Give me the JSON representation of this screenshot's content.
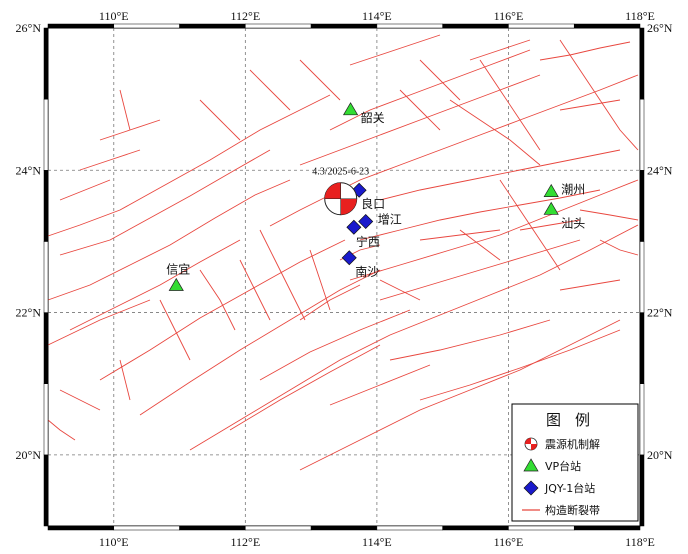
{
  "map": {
    "lon_range": [
      109,
      118
    ],
    "lat_range": [
      19,
      26
    ],
    "lon_ticks": [
      {
        "value": 110,
        "label": "110°E"
      },
      {
        "value": 112,
        "label": "112°E"
      },
      {
        "value": 114,
        "label": "114°E"
      },
      {
        "value": 116,
        "label": "116°E"
      },
      {
        "value": 118,
        "label": "118°E"
      }
    ],
    "lat_ticks": [
      {
        "value": 26,
        "label": "26°N"
      },
      {
        "value": 24,
        "label": "24°N"
      },
      {
        "value": 22,
        "label": "22°N"
      },
      {
        "value": 20,
        "label": "20°N"
      }
    ],
    "grid": "dashed",
    "fault_color": "#e8473f",
    "vp_color": "#33dd33",
    "jqy_color": "#1a1acc",
    "beachball_color": "#e8201f"
  },
  "event": {
    "label": "4.3/2025-6-23",
    "lon": 113.45,
    "lat": 23.6
  },
  "vp_stations": [
    {
      "name": "韶关",
      "lon": 113.6,
      "lat": 24.85
    },
    {
      "name": "潮州",
      "lon": 116.65,
      "lat": 23.7
    },
    {
      "name": "汕头",
      "lon": 116.65,
      "lat": 23.45
    },
    {
      "name": "信宜",
      "lon": 110.95,
      "lat": 22.38
    }
  ],
  "jqy_stations": [
    {
      "name": "良口",
      "lon": 113.73,
      "lat": 23.72
    },
    {
      "name": "增江",
      "lon": 113.83,
      "lat": 23.28
    },
    {
      "name": "宁西",
      "lon": 113.65,
      "lat": 23.2
    },
    {
      "name": "南沙",
      "lon": 113.58,
      "lat": 22.77
    }
  ],
  "legend": {
    "title": "图例",
    "items": [
      {
        "symbol": "beachball",
        "label": "震源机制解"
      },
      {
        "symbol": "triangle",
        "label": "VP台站"
      },
      {
        "symbol": "diamond",
        "label": "JQY-1台站"
      },
      {
        "symbol": "line",
        "label": "构造断裂带"
      }
    ]
  }
}
